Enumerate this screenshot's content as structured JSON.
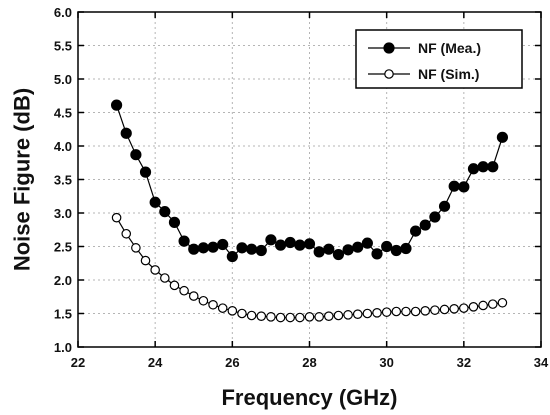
{
  "chart_data": {
    "type": "line",
    "xlabel": "Frequency (GHz)",
    "ylabel": "Noise Figure (dB)",
    "xlim": [
      22,
      34
    ],
    "ylim": [
      1.0,
      6.0
    ],
    "x_ticks": [
      "22",
      "24",
      "26",
      "28",
      "30",
      "32",
      "34"
    ],
    "y_ticks": [
      "1.0",
      "1.5",
      "2.0",
      "2.5",
      "3.0",
      "3.5",
      "4.0",
      "4.5",
      "5.0",
      "5.5",
      "6.0"
    ],
    "grid": true,
    "legend_position": "top-right",
    "series": [
      {
        "name": "NF (Mea.)",
        "marker": "filled-circle",
        "x": [
          23.0,
          23.25,
          23.5,
          23.75,
          24.0,
          24.25,
          24.5,
          24.75,
          25.0,
          25.25,
          25.5,
          25.75,
          26.0,
          26.25,
          26.5,
          26.75,
          27.0,
          27.25,
          27.5,
          27.75,
          28.0,
          28.25,
          28.5,
          28.75,
          29.0,
          29.25,
          29.5,
          29.75,
          30.0,
          30.25,
          30.5,
          30.75,
          31.0,
          31.25,
          31.5,
          31.75,
          32.0,
          32.25,
          32.5,
          32.75,
          33.0
        ],
        "values": [
          4.61,
          4.19,
          3.87,
          3.61,
          3.16,
          3.02,
          2.86,
          2.58,
          2.46,
          2.48,
          2.49,
          2.53,
          2.35,
          2.48,
          2.46,
          2.44,
          2.6,
          2.52,
          2.56,
          2.52,
          2.54,
          2.42,
          2.46,
          2.38,
          2.45,
          2.49,
          2.55,
          2.39,
          2.5,
          2.44,
          2.47,
          2.73,
          2.82,
          2.94,
          3.1,
          3.4,
          3.39,
          3.66,
          3.69,
          3.69,
          4.13
        ]
      },
      {
        "name": "NF (Sim.)",
        "marker": "open-circle",
        "x": [
          23.0,
          23.25,
          23.5,
          23.75,
          24.0,
          24.25,
          24.5,
          24.75,
          25.0,
          25.25,
          25.5,
          25.75,
          26.0,
          26.25,
          26.5,
          26.75,
          27.0,
          27.25,
          27.5,
          27.75,
          28.0,
          28.25,
          28.5,
          28.75,
          29.0,
          29.25,
          29.5,
          29.75,
          30.0,
          30.25,
          30.5,
          30.75,
          31.0,
          31.25,
          31.5,
          31.75,
          32.0,
          32.25,
          32.5,
          32.75,
          33.0
        ],
        "values": [
          2.93,
          2.69,
          2.48,
          2.29,
          2.15,
          2.03,
          1.92,
          1.84,
          1.76,
          1.69,
          1.63,
          1.58,
          1.54,
          1.5,
          1.47,
          1.46,
          1.45,
          1.44,
          1.44,
          1.44,
          1.45,
          1.45,
          1.46,
          1.47,
          1.48,
          1.49,
          1.5,
          1.51,
          1.52,
          1.53,
          1.53,
          1.53,
          1.54,
          1.55,
          1.56,
          1.57,
          1.58,
          1.6,
          1.62,
          1.64,
          1.66
        ]
      }
    ]
  }
}
